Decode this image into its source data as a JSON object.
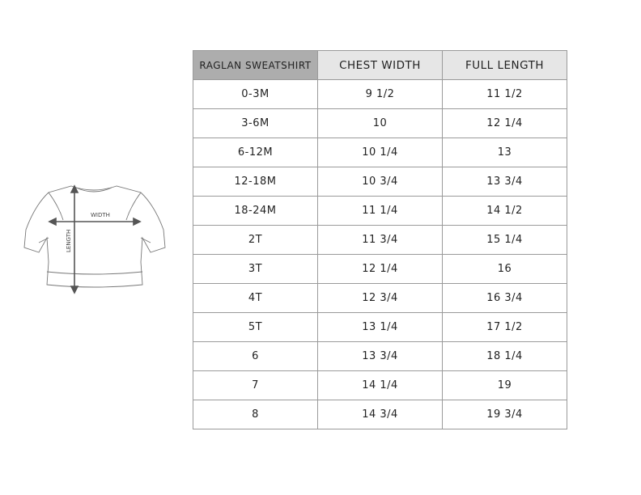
{
  "diagram": {
    "width_label": "WIDTH",
    "length_label": "LENGTH"
  },
  "table": {
    "headers": [
      "RAGLAN SWEATSHIRT",
      "CHEST WIDTH",
      "FULL LENGTH"
    ],
    "rows": [
      [
        "0-3M",
        "9 1/2",
        "11 1/2"
      ],
      [
        "3-6M",
        "10",
        "12 1/4"
      ],
      [
        "6-12M",
        "10 1/4",
        "13"
      ],
      [
        "12-18M",
        "10 3/4",
        "13 3/4"
      ],
      [
        "18-24M",
        "11 1/4",
        "14 1/2"
      ],
      [
        "2T",
        "11 3/4",
        "15 1/4"
      ],
      [
        "3T",
        "12 1/4",
        "16"
      ],
      [
        "4T",
        "12 3/4",
        "16 3/4"
      ],
      [
        "5T",
        "13 1/4",
        "17 1/2"
      ],
      [
        "6",
        "13 3/4",
        "18 1/4"
      ],
      [
        "7",
        "14 1/4",
        "19"
      ],
      [
        "8",
        "14 3/4",
        "19 3/4"
      ]
    ]
  }
}
